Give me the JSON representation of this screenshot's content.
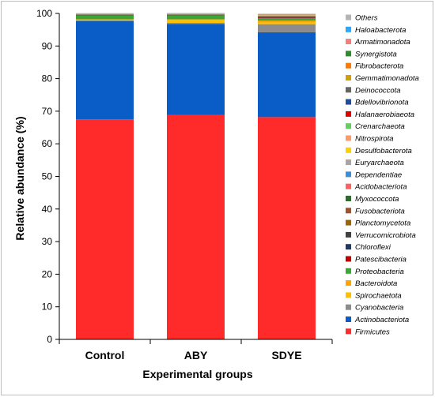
{
  "chart_data": {
    "type": "bar",
    "stacked": true,
    "xlabel": "Experimental groups",
    "ylabel": "Relative abundance (%)",
    "ylim": [
      0,
      100
    ],
    "yticks": [
      0,
      10,
      20,
      30,
      40,
      50,
      60,
      70,
      80,
      90,
      100
    ],
    "categories": [
      "Control",
      "ABY",
      "SDYE"
    ],
    "legend_position": "right",
    "series": [
      {
        "name": "Firmicutes",
        "color": "#ff2a2a",
        "values": [
          67.5,
          68.8,
          68.2
        ]
      },
      {
        "name": "Actinobacteriota",
        "color": "#0a5cc7",
        "values": [
          30.2,
          28.0,
          26.0
        ]
      },
      {
        "name": "Cyanobacteria",
        "color": "#8c8c8c",
        "values": [
          0.1,
          0.3,
          2.5
        ]
      },
      {
        "name": "Spirochaetota",
        "color": "#ffc000",
        "values": [
          0.2,
          0.8,
          0.5
        ]
      },
      {
        "name": "Bacteroidota",
        "color": "#ffa500",
        "values": [
          0.2,
          0.3,
          0.6
        ]
      },
      {
        "name": "Proteobacteria",
        "color": "#3aa63a",
        "values": [
          1.2,
          1.2,
          0.7
        ]
      },
      {
        "name": "Patescibacteria",
        "color": "#c00000",
        "values": [
          0.1,
          0.1,
          0.2
        ]
      },
      {
        "name": "Chloroflexi",
        "color": "#1f3864",
        "values": [
          0.05,
          0.05,
          0.1
        ]
      },
      {
        "name": "Verrucomicrobiota",
        "color": "#404040",
        "values": [
          0.05,
          0.05,
          0.1
        ]
      },
      {
        "name": "Planctomycetota",
        "color": "#9c6500",
        "values": [
          0.05,
          0.05,
          0.2
        ]
      },
      {
        "name": "Fusobacteriota",
        "color": "#a0522d",
        "values": [
          0.05,
          0.05,
          0.1
        ]
      },
      {
        "name": "Myxococcota",
        "color": "#2e6b2e",
        "values": [
          0.05,
          0.05,
          0.1
        ]
      },
      {
        "name": "Acidobacteriota",
        "color": "#ff6060",
        "values": [
          0.05,
          0.05,
          0.05
        ]
      },
      {
        "name": "Dependentiae",
        "color": "#3a8fd9",
        "values": [
          0.02,
          0.02,
          0.05
        ]
      },
      {
        "name": "Euryarchaeota",
        "color": "#a6a6a6",
        "values": [
          0.02,
          0.02,
          0.05
        ]
      },
      {
        "name": "Desulfobacterota",
        "color": "#ffd000",
        "values": [
          0.02,
          0.02,
          0.05
        ]
      },
      {
        "name": "Nitrospirota",
        "color": "#ff9966",
        "values": [
          0.02,
          0.02,
          0.05
        ]
      },
      {
        "name": "Crenarchaeota",
        "color": "#66cc66",
        "values": [
          0.02,
          0.02,
          0.05
        ]
      },
      {
        "name": "Halanaerobiaeota",
        "color": "#e00000",
        "values": [
          0.02,
          0.02,
          0.03
        ]
      },
      {
        "name": "Bdellovibrionota",
        "color": "#1f4e9c",
        "values": [
          0.02,
          0.02,
          0.03
        ]
      },
      {
        "name": "Deinococcota",
        "color": "#666666",
        "values": [
          0.02,
          0.02,
          0.03
        ]
      },
      {
        "name": "Gemmatimonadota",
        "color": "#d4a000",
        "values": [
          0.02,
          0.02,
          0.03
        ]
      },
      {
        "name": "Fibrobacterota",
        "color": "#ff7a00",
        "values": [
          0.02,
          0.02,
          0.03
        ]
      },
      {
        "name": "Synergistota",
        "color": "#2e8b2e",
        "values": [
          0.02,
          0.02,
          0.03
        ]
      },
      {
        "name": "Armatimonadota",
        "color": "#f08080",
        "values": [
          0.01,
          0.01,
          0.02
        ]
      },
      {
        "name": "Haloabacterota",
        "color": "#2aa8ff",
        "values": [
          0.01,
          0.01,
          0.02
        ]
      },
      {
        "name": "Others",
        "color": "#b4b4b4",
        "values": [
          0.05,
          0.1,
          0.1
        ]
      }
    ]
  }
}
